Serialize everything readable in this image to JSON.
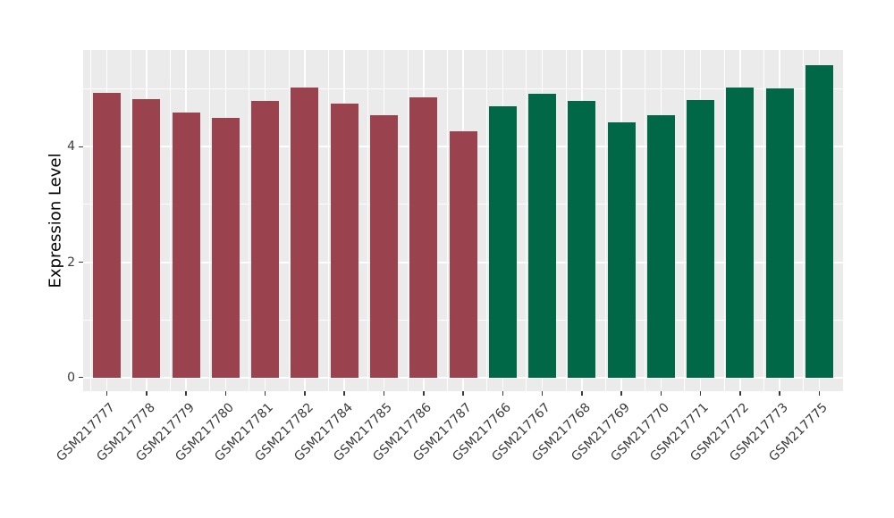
{
  "chart_data": {
    "type": "bar",
    "title": "",
    "xlabel": "",
    "ylabel": "Expression Level",
    "ylim": [
      0,
      5.68
    ],
    "yticks": [
      0,
      2,
      4
    ],
    "grid": "on",
    "grid_interval": 1,
    "legend_position": "none",
    "categories": [
      "GSM217777",
      "GSM217778",
      "GSM217779",
      "GSM217780",
      "GSM217781",
      "GSM217782",
      "GSM217784",
      "GSM217785",
      "GSM217786",
      "GSM217787",
      "GSM217766",
      "GSM217767",
      "GSM217768",
      "GSM217769",
      "GSM217770",
      "GSM217771",
      "GSM217772",
      "GSM217773",
      "GSM217775"
    ],
    "values": [
      4.94,
      4.82,
      4.59,
      4.5,
      4.8,
      5.02,
      4.75,
      4.55,
      4.86,
      4.27,
      4.7,
      4.92,
      4.8,
      4.42,
      4.54,
      4.81,
      5.03,
      5.01,
      5.41
    ],
    "bar_groups": [
      "red",
      "red",
      "red",
      "red",
      "red",
      "red",
      "red",
      "red",
      "red",
      "red",
      "green",
      "green",
      "green",
      "green",
      "green",
      "green",
      "green",
      "green",
      "green"
    ],
    "group_colors": {
      "red": "#9A434F",
      "green": "#006847"
    },
    "panel_background": "#EBEBEB",
    "gridline_color": "#FFFFFF",
    "axis_text_color": "#3a3a3a"
  }
}
